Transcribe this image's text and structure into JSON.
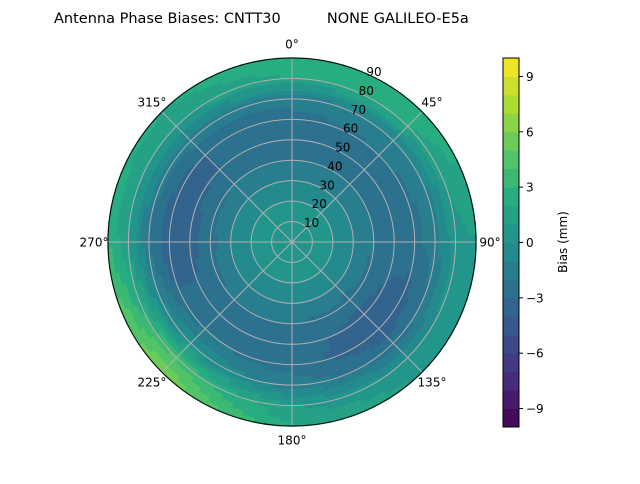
{
  "chart_data": {
    "type": "heatmap",
    "subtype": "polar-filled-contour",
    "title": "Antenna Phase Biases: CNTT30          NONE GALILEO-E5a",
    "angular_axis": {
      "direction": "clockwise",
      "zero_location": "north",
      "tick_labels": [
        "0°",
        "45°",
        "90°",
        "135°",
        "180°",
        "225°",
        "270°",
        "315°"
      ],
      "tick_values": [
        0,
        45,
        90,
        135,
        180,
        225,
        270,
        315
      ]
    },
    "radial_axis": {
      "range": [
        0,
        90
      ],
      "tick_values": [
        10,
        20,
        30,
        40,
        50,
        60,
        70,
        80,
        90
      ],
      "tick_labels": [
        "10",
        "20",
        "30",
        "40",
        "50",
        "60",
        "70",
        "80",
        "90"
      ]
    },
    "grid": true,
    "colormap": "viridis",
    "colorbar": {
      "label": "Bias (mm)",
      "range": [
        -10,
        10
      ],
      "level_step": 1,
      "tick_values": [
        -9,
        -6,
        -3,
        0,
        3,
        6,
        9
      ],
      "tick_labels": [
        "−9",
        "−6",
        "−3",
        "0",
        "3",
        "6",
        "9"
      ],
      "placement": "right"
    },
    "field": {
      "azimuths": [
        0,
        45,
        90,
        135,
        180,
        225,
        270,
        315
      ],
      "radii": [
        0,
        10,
        20,
        30,
        40,
        50,
        60,
        70,
        80,
        90
      ],
      "values": [
        [
          1,
          0.5,
          0,
          -1,
          -2,
          -2.5,
          -2.5,
          -1.5,
          2,
          3
        ],
        [
          1,
          0.5,
          0,
          -1,
          -2,
          -2.5,
          -2,
          -1,
          2,
          3
        ],
        [
          1,
          0.5,
          0,
          -1,
          -2,
          -2.5,
          -2.5,
          -1.5,
          0.5,
          1
        ],
        [
          1,
          0.5,
          0,
          -1,
          -2.5,
          -3.5,
          -4,
          -2.5,
          0,
          1
        ],
        [
          1,
          0.5,
          0,
          -1,
          -2,
          -2.5,
          -2.5,
          -1.5,
          1,
          2
        ],
        [
          1,
          0.5,
          0,
          -1,
          -2,
          -2.5,
          -2,
          0,
          4,
          6
        ],
        [
          1,
          0.5,
          0,
          -1,
          -2.5,
          -3.5,
          -4,
          -2,
          1,
          3
        ],
        [
          1,
          0.5,
          0,
          -1,
          -2,
          -3,
          -3,
          -1.5,
          1,
          2
        ]
      ]
    }
  }
}
